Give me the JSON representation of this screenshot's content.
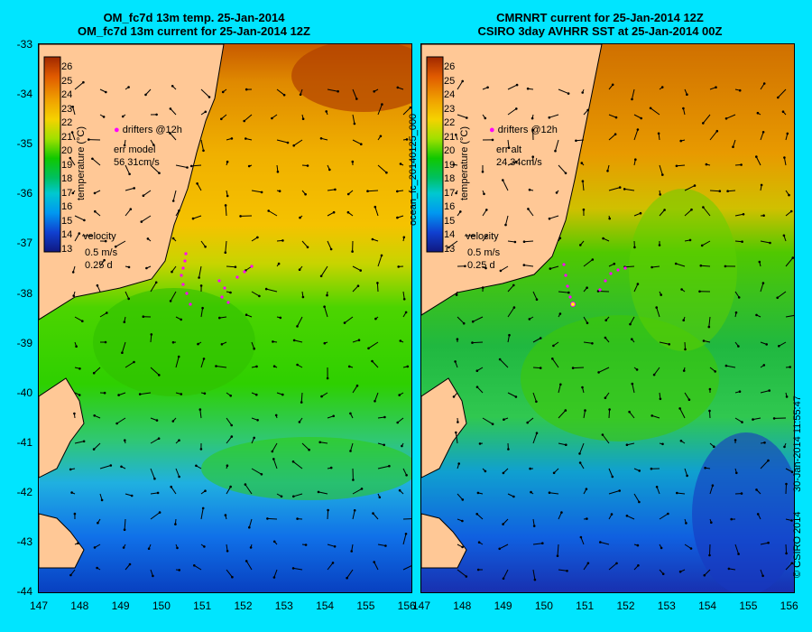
{
  "left_panel": {
    "title_line1": "OM_fc7d 13m temp. 25-Jan-2014",
    "title_line2": "OM_fc7d 13m current for 25-Jan-2014 12Z",
    "legend_drifters": "drifters @12h",
    "err_label": "err model",
    "err_values": "56 31cm/s",
    "velocity_label": "velocity",
    "velocity_value": "0.5 m/s",
    "velocity_time": "0.25 d"
  },
  "right_panel": {
    "title_line1": "CMRNRT current for 25-Jan-2014 12Z",
    "title_line2": "CSIRO 3day AVHRR SST at 25-Jan-2014 00Z",
    "legend_drifters": "drifters @12h",
    "err_label": "err alt",
    "err_values": "24 34cm/s",
    "velocity_label": "velocity",
    "velocity_value": "0.5 m/s",
    "velocity_time": "0.25 d",
    "side_label": "ocean_fc_20140125_000"
  },
  "colorbar": {
    "title": "temperature (°C)",
    "ticks": [
      "26",
      "25",
      "24",
      "23",
      "22",
      "21",
      "20",
      "19",
      "18",
      "17",
      "16",
      "15",
      "14",
      "13"
    ]
  },
  "axes": {
    "y_ticks": [
      "-33",
      "-34",
      "-35",
      "-36",
      "-37",
      "-38",
      "-39",
      "-40",
      "-41",
      "-42",
      "-43",
      "-44"
    ],
    "x_ticks": [
      "147",
      "148",
      "149",
      "150",
      "151",
      "152",
      "153",
      "154",
      "155",
      "156"
    ]
  },
  "footer": {
    "timestamp": "30-Jan-2014 11:55:47",
    "copyright": "© CSIRO 2014"
  },
  "colors": {
    "background": "#00e5ff",
    "land": "#ffc896",
    "drifter": "#ff00ff"
  }
}
